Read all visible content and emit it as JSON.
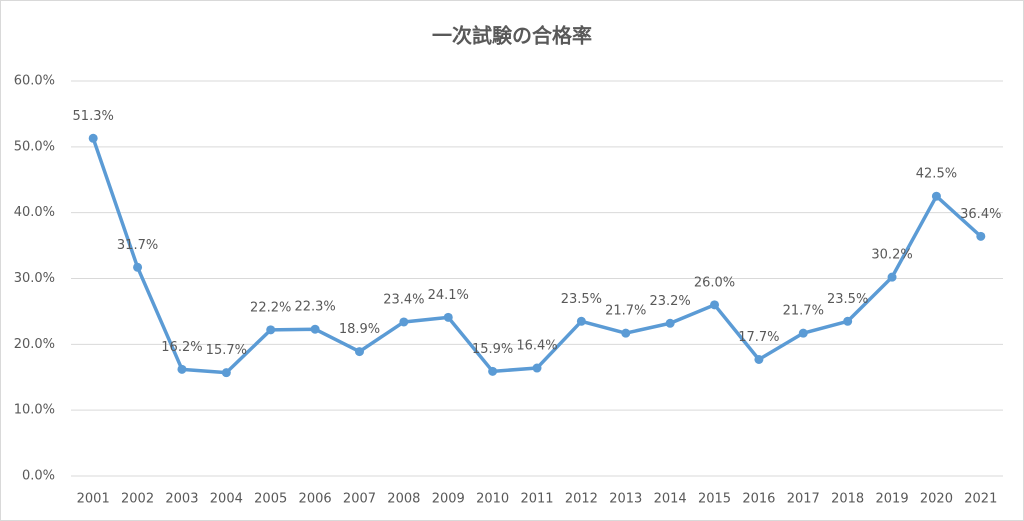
{
  "chart_data": {
    "type": "line",
    "title": "一次試験の合格率",
    "categories": [
      "2001",
      "2002",
      "2003",
      "2004",
      "2005",
      "2006",
      "2007",
      "2008",
      "2009",
      "2010",
      "2011",
      "2012",
      "2013",
      "2014",
      "2015",
      "2016",
      "2017",
      "2018",
      "2019",
      "2020",
      "2021"
    ],
    "series": [
      {
        "name": "合格率",
        "color": "#5b9bd5",
        "values": [
          51.3,
          31.7,
          16.2,
          15.7,
          22.2,
          22.3,
          18.9,
          23.4,
          24.1,
          15.9,
          16.4,
          23.5,
          21.7,
          23.2,
          26.0,
          17.7,
          21.7,
          23.5,
          30.2,
          42.5,
          36.4
        ],
        "value_labels": [
          "51.3%",
          "31.7%",
          "16.2%",
          "15.7%",
          "22.2%",
          "22.3%",
          "18.9%",
          "23.4%",
          "24.1%",
          "15.9%",
          "16.4%",
          "23.5%",
          "21.7%",
          "23.2%",
          "26.0%",
          "17.7%",
          "21.7%",
          "23.5%",
          "30.2%",
          "42.5%",
          "36.4%"
        ]
      }
    ],
    "ylim": [
      0,
      60
    ],
    "yticks": [
      {
        "value": 0,
        "label": "0.0%"
      },
      {
        "value": 10,
        "label": "10.0%"
      },
      {
        "value": 20,
        "label": "20.0%"
      },
      {
        "value": 30,
        "label": "30.0%"
      },
      {
        "value": 40,
        "label": "40.0%"
      },
      {
        "value": 50,
        "label": "50.0%"
      },
      {
        "value": 60,
        "label": "60.0%"
      }
    ],
    "grid": true
  }
}
